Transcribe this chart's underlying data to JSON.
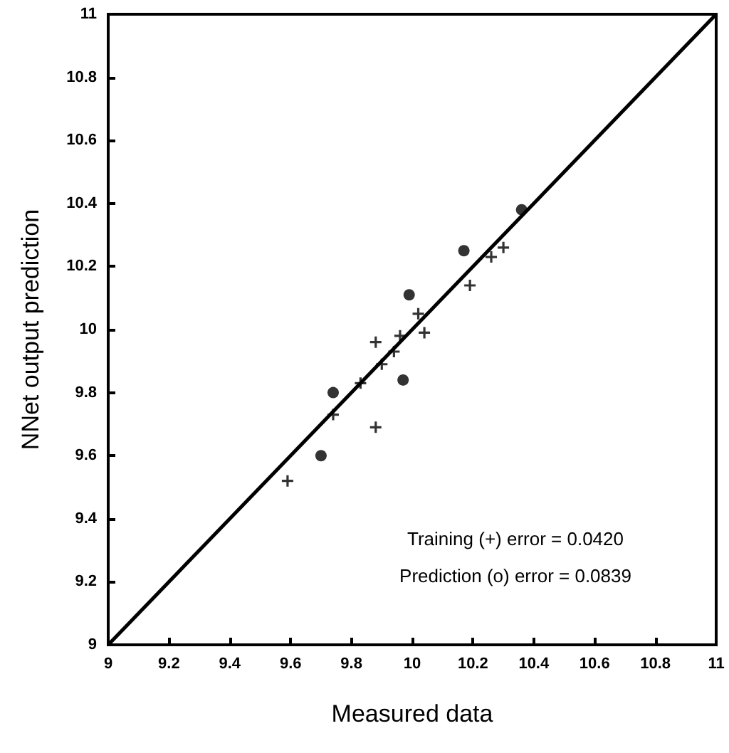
{
  "chart_data": {
    "type": "scatter",
    "xlabel": "Measured data",
    "ylabel": "NNet output prediction",
    "annotations": [
      "Training (+) error = 0.0420",
      "Prediction (o) error = 0.0839"
    ],
    "xlim": [
      9,
      11
    ],
    "ylim": [
      9,
      11
    ],
    "xticks": [
      9,
      9.2,
      9.4,
      9.6,
      9.8,
      10,
      10.2,
      10.4,
      10.6,
      10.8,
      11
    ],
    "yticks": [
      9,
      9.2,
      9.4,
      9.6,
      9.8,
      10,
      10.2,
      10.4,
      10.6,
      10.8,
      11
    ],
    "grid": false,
    "series": [
      {
        "type": "line",
        "marker": "none",
        "color": "#000000",
        "x": [
          9,
          11
        ],
        "values": [
          9,
          11
        ]
      },
      {
        "marker": "cross",
        "color": "#000000",
        "x": [
          9.59,
          9.74,
          9.83,
          9.88,
          9.88,
          9.9,
          9.94,
          9.96,
          10.02,
          10.04,
          10.19,
          10.26,
          10.3
        ],
        "values": [
          9.52,
          9.73,
          9.83,
          9.96,
          9.69,
          9.89,
          9.93,
          9.98,
          10.05,
          9.99,
          10.14,
          10.23,
          10.26
        ]
      },
      {
        "marker": "circle",
        "color": "#000000",
        "x": [
          9.7,
          9.74,
          9.97,
          9.99,
          10.17,
          10.36
        ],
        "values": [
          9.6,
          9.8,
          9.84,
          10.11,
          10.25,
          10.38
        ]
      }
    ]
  }
}
